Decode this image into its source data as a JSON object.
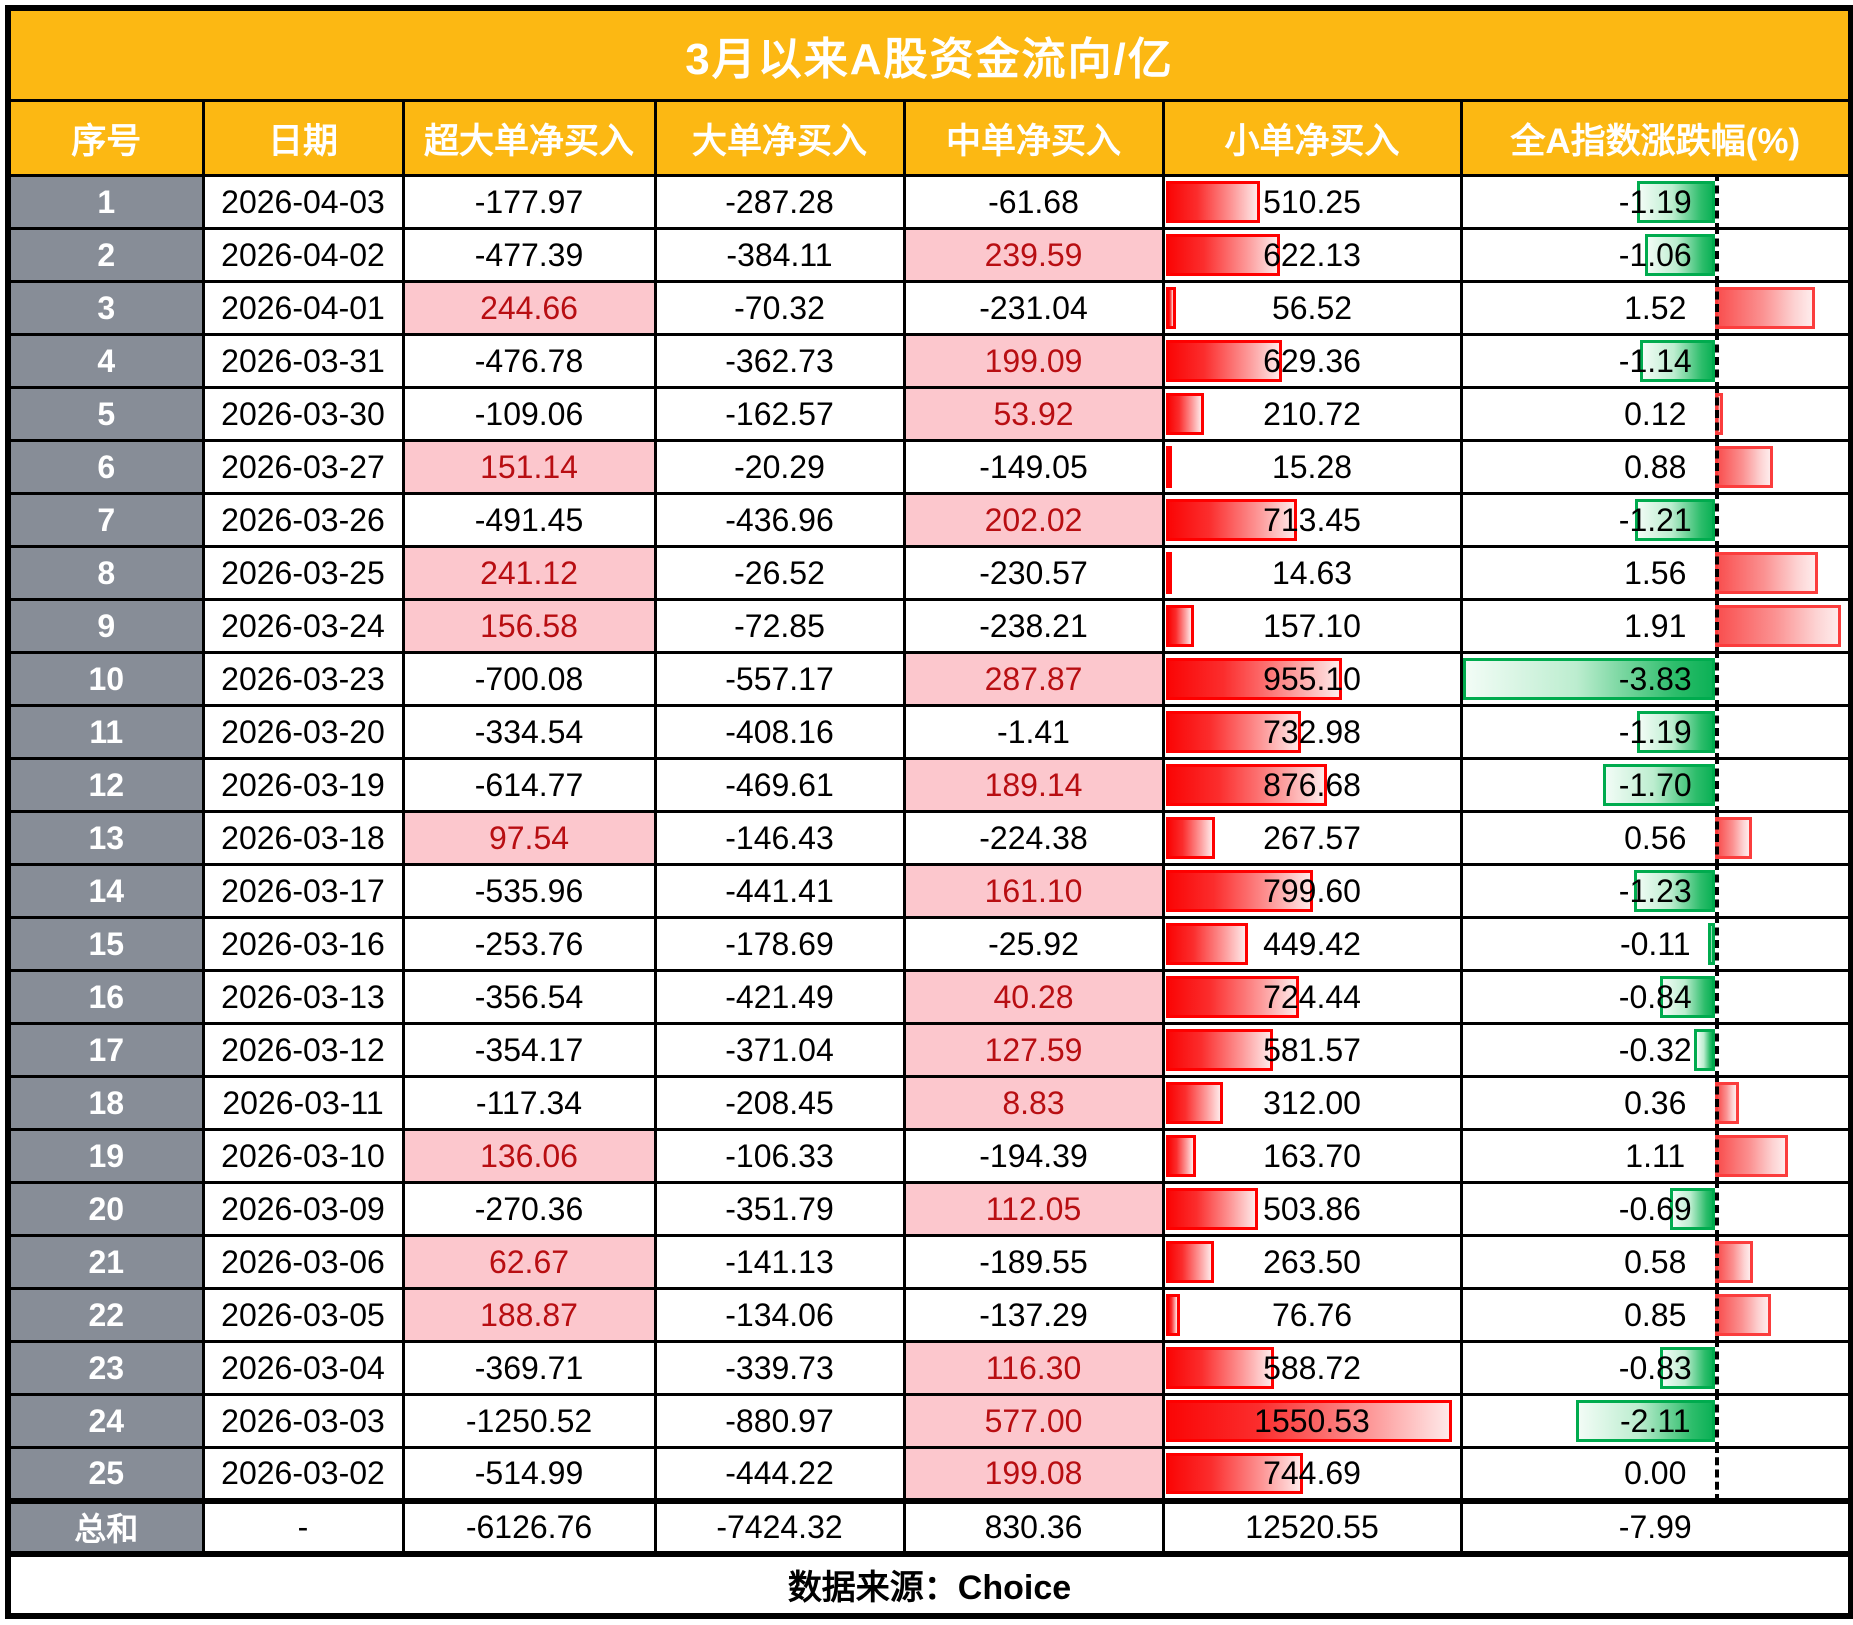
{
  "title": "3月以来A股资金流向/亿",
  "columns": [
    "序号",
    "日期",
    "超大单净买入",
    "大单净买入",
    "中单净买入",
    "小单净买入",
    "全A指数涨跌幅(%)"
  ],
  "rows": [
    {
      "no": "1",
      "date": "2026-04-03",
      "super": -177.97,
      "big": -287.28,
      "mid": -61.68,
      "small": 510.25,
      "index": -1.19
    },
    {
      "no": "2",
      "date": "2026-04-02",
      "super": -477.39,
      "big": -384.11,
      "mid": 239.59,
      "small": 622.13,
      "index": -1.06
    },
    {
      "no": "3",
      "date": "2026-04-01",
      "super": 244.66,
      "big": -70.32,
      "mid": -231.04,
      "small": 56.52,
      "index": 1.52
    },
    {
      "no": "4",
      "date": "2026-03-31",
      "super": -476.78,
      "big": -362.73,
      "mid": 199.09,
      "small": 629.36,
      "index": -1.14
    },
    {
      "no": "5",
      "date": "2026-03-30",
      "super": -109.06,
      "big": -162.57,
      "mid": 53.92,
      "small": 210.72,
      "index": 0.12
    },
    {
      "no": "6",
      "date": "2026-03-27",
      "super": 151.14,
      "big": -20.29,
      "mid": -149.05,
      "small": 15.28,
      "index": 0.88
    },
    {
      "no": "7",
      "date": "2026-03-26",
      "super": -491.45,
      "big": -436.96,
      "mid": 202.02,
      "small": 713.45,
      "index": -1.21
    },
    {
      "no": "8",
      "date": "2026-03-25",
      "super": 241.12,
      "big": -26.52,
      "mid": -230.57,
      "small": 14.63,
      "index": 1.56
    },
    {
      "no": "9",
      "date": "2026-03-24",
      "super": 156.58,
      "big": -72.85,
      "mid": -238.21,
      "small": 157.1,
      "index": 1.91
    },
    {
      "no": "10",
      "date": "2026-03-23",
      "super": -700.08,
      "big": -557.17,
      "mid": 287.87,
      "small": 955.1,
      "index": -3.83
    },
    {
      "no": "11",
      "date": "2026-03-20",
      "super": -334.54,
      "big": -408.16,
      "mid": -1.41,
      "small": 732.98,
      "index": -1.19
    },
    {
      "no": "12",
      "date": "2026-03-19",
      "super": -614.77,
      "big": -469.61,
      "mid": 189.14,
      "small": 876.68,
      "index": -1.7
    },
    {
      "no": "13",
      "date": "2026-03-18",
      "super": 97.54,
      "big": -146.43,
      "mid": -224.38,
      "small": 267.57,
      "index": 0.56
    },
    {
      "no": "14",
      "date": "2026-03-17",
      "super": -535.96,
      "big": -441.41,
      "mid": 161.1,
      "small": 799.6,
      "index": -1.23
    },
    {
      "no": "15",
      "date": "2026-03-16",
      "super": -253.76,
      "big": -178.69,
      "mid": -25.92,
      "small": 449.42,
      "index": -0.11
    },
    {
      "no": "16",
      "date": "2026-03-13",
      "super": -356.54,
      "big": -421.49,
      "mid": 40.28,
      "small": 724.44,
      "index": -0.84
    },
    {
      "no": "17",
      "date": "2026-03-12",
      "super": -354.17,
      "big": -371.04,
      "mid": 127.59,
      "small": 581.57,
      "index": -0.32
    },
    {
      "no": "18",
      "date": "2026-03-11",
      "super": -117.34,
      "big": -208.45,
      "mid": 8.83,
      "small": 312.0,
      "index": 0.36
    },
    {
      "no": "19",
      "date": "2026-03-10",
      "super": 136.06,
      "big": -106.33,
      "mid": -194.39,
      "small": 163.7,
      "index": 1.11
    },
    {
      "no": "20",
      "date": "2026-03-09",
      "super": -270.36,
      "big": -351.79,
      "mid": 112.05,
      "small": 503.86,
      "index": -0.69
    },
    {
      "no": "21",
      "date": "2026-03-06",
      "super": 62.67,
      "big": -141.13,
      "mid": -189.55,
      "small": 263.5,
      "index": 0.58
    },
    {
      "no": "22",
      "date": "2026-03-05",
      "super": 188.87,
      "big": -134.06,
      "mid": -137.29,
      "small": 76.76,
      "index": 0.85
    },
    {
      "no": "23",
      "date": "2026-03-04",
      "super": -369.71,
      "big": -339.73,
      "mid": 116.3,
      "small": 588.72,
      "index": -0.83
    },
    {
      "no": "24",
      "date": "2026-03-03",
      "super": -1250.52,
      "big": -880.97,
      "mid": 577.0,
      "small": 1550.53,
      "index": -2.11
    },
    {
      "no": "25",
      "date": "2026-03-02",
      "super": -514.99,
      "big": -444.22,
      "mid": 199.08,
      "small": 744.69,
      "index": 0.0
    }
  ],
  "total_row": {
    "no": "总和",
    "date": "-",
    "super": -6126.76,
    "big": -7424.32,
    "mid": 830.36,
    "small": 12520.55,
    "index": -7.99
  },
  "footer": {
    "source": "数据来源：Choice"
  },
  "bars": {
    "small_bar_max": 1550.53,
    "small_bar_full_pct": 97,
    "index_axis_pct": 65.5,
    "index_min": -3.83,
    "index_max": 1.91
  },
  "colors": {
    "header_bg": "#FCB813",
    "index_col_bg": "#878D97",
    "positive_fill": "#FCC7CD",
    "positive_text": "#B80E12",
    "red_bar_border": "#FE0000",
    "green_bar_border": "#00AB4E"
  }
}
